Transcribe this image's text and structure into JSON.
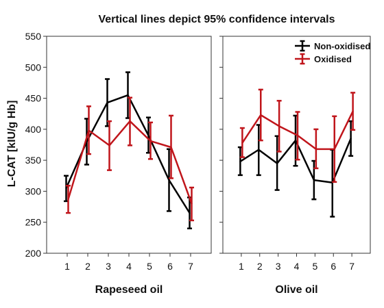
{
  "chart_data": {
    "type": "line",
    "title": "Vertical lines depict 95% confidence intervals",
    "ylabel": "L-CAT [kIU/g Hb]",
    "ylim": [
      200,
      550
    ],
    "yticks": [
      200,
      250,
      300,
      350,
      400,
      450,
      500,
      550
    ],
    "legend_position": "top-right",
    "colors": {
      "Non-oxidised": "#000000",
      "Oxidised": "#c0151b"
    },
    "panels": [
      {
        "xlabel": "Rapeseed oil",
        "x": [
          1,
          2,
          3,
          4,
          5,
          6,
          7
        ],
        "series": [
          {
            "name": "Non-oxidised",
            "values": [
              305,
              380,
              443,
              455,
              390,
              318,
              265
            ],
            "ci_low": [
              284,
              343,
              405,
              418,
              362,
              268,
              240
            ],
            "ci_high": [
              325,
              417,
              481,
              492,
              419,
              368,
              290
            ]
          },
          {
            "name": "Oxidised",
            "values": [
              287,
              398,
              374,
              413,
              381,
              371,
              280
            ],
            "ci_low": [
              265,
              360,
              334,
              374,
              352,
              321,
              253
            ],
            "ci_high": [
              309,
              437,
              413,
              451,
              411,
              422,
              306
            ]
          }
        ]
      },
      {
        "xlabel": "Olive oil",
        "x": [
          1,
          2,
          3,
          4,
          5,
          6,
          7
        ],
        "series": [
          {
            "name": "Non-oxidised",
            "values": [
              348,
              367,
              345,
              382,
              318,
              314,
              385
            ],
            "ci_low": [
              326,
              326,
              302,
              341,
              287,
              259,
              357
            ],
            "ci_high": [
              371,
              407,
              389,
              422,
              349,
              367,
              413
            ]
          },
          {
            "name": "Oxidised",
            "values": [
              378,
              423,
              405,
              390,
              368,
              368,
              429
            ],
            "ci_low": [
              355,
              382,
              364,
              351,
              337,
              315,
              399
            ],
            "ci_high": [
              402,
              464,
              446,
              428,
              400,
              421,
              459
            ]
          }
        ]
      }
    ]
  }
}
